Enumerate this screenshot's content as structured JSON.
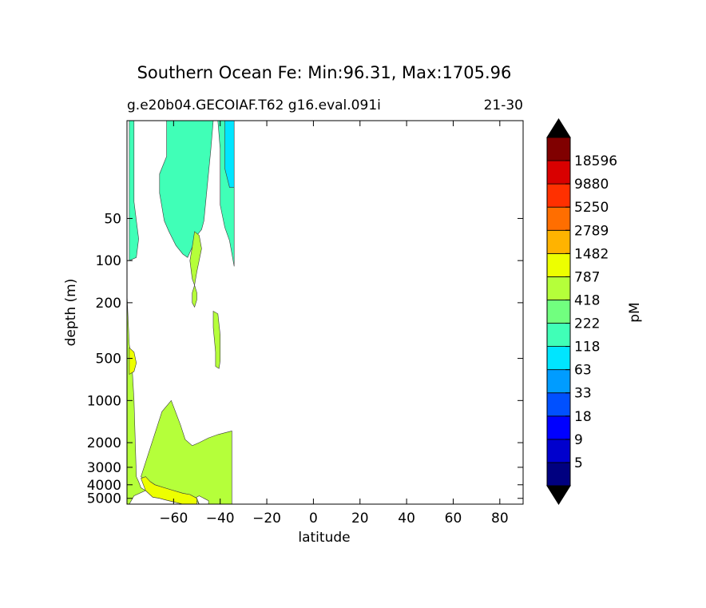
{
  "chart_data": {
    "type": "filled-contour",
    "title": "Southern Ocean Fe: Min:96.31, Max:1705.96",
    "subtitle_left": "g.e20b04.GECOIAF.T62 g16.eval.091i",
    "subtitle_right": "21-30",
    "xlabel": "latitude",
    "ylabel": "depth (m)",
    "xlim": [
      -80,
      90
    ],
    "x_ticks": [
      -60,
      -40,
      -20,
      0,
      20,
      40,
      60,
      80
    ],
    "x_tick_labels": [
      "−60",
      "−40",
      "−20",
      "0",
      "20",
      "40",
      "60",
      "80"
    ],
    "ylim": [
      5500,
      10
    ],
    "y_scale": "log",
    "y_ticks": [
      50,
      100,
      200,
      500,
      1000,
      2000,
      3000,
      4000,
      5000
    ],
    "y_tick_labels": [
      "50",
      "100",
      "200",
      "500",
      "1000",
      "2000",
      "3000",
      "4000",
      "5000"
    ],
    "colorbar": {
      "label": "pM",
      "ticks": [
        "5",
        "9",
        "18",
        "33",
        "63",
        "118",
        "222",
        "418",
        "787",
        "1482",
        "2789",
        "5250",
        "9880",
        "18596"
      ],
      "colors": [
        "#000080",
        "#0000cd",
        "#0000ff",
        "#0050ff",
        "#009cff",
        "#00e5ff",
        "#40ffb7",
        "#71ff7f",
        "#b5ff3a",
        "#edff00",
        "#ffb300",
        "#ff6e00",
        "#ff3000",
        "#d90000",
        "#800000"
      ],
      "extend": "both"
    },
    "regions": [
      {
        "level": "118-222",
        "color": "#40ffb7",
        "polygon": [
          [
            -79,
            10
          ],
          [
            -63,
            10
          ],
          [
            -63,
            18
          ],
          [
            -66,
            24
          ],
          [
            -66,
            33
          ],
          [
            -64,
            52
          ],
          [
            -62,
            62
          ],
          [
            -59,
            78
          ],
          [
            -56,
            90
          ],
          [
            -54,
            95
          ],
          [
            -52,
            80
          ],
          [
            -50,
            66
          ],
          [
            -48,
            60
          ],
          [
            -47,
            52
          ],
          [
            -46,
            35
          ],
          [
            -44,
            16
          ],
          [
            -43,
            10
          ],
          [
            -41,
            10
          ],
          [
            -40,
            16
          ],
          [
            -40,
            40
          ],
          [
            -38,
            58
          ],
          [
            -36,
            72
          ],
          [
            -34,
            110
          ],
          [
            -34,
            10
          ],
          [
            -77,
            10
          ],
          [
            -77,
            38
          ],
          [
            -75,
            70
          ],
          [
            -76,
            95
          ],
          [
            -79,
            100
          ]
        ]
      },
      {
        "level": "63-118",
        "color": "#00e5ff",
        "polygon": [
          [
            -38,
            10
          ],
          [
            -34,
            10
          ],
          [
            -34,
            30
          ],
          [
            -36,
            30
          ],
          [
            -38,
            22
          ]
        ]
      },
      {
        "level": "418-787",
        "color": "#b5ff3a",
        "polygon": [
          [
            -51,
            62
          ],
          [
            -49,
            66
          ],
          [
            -48,
            82
          ],
          [
            -50,
            120
          ],
          [
            -51,
            150
          ],
          [
            -52,
            135
          ],
          [
            -53,
            100
          ],
          [
            -52,
            80
          ]
        ]
      },
      {
        "level": "418-787",
        "color": "#b5ff3a",
        "polygon": [
          [
            -51,
            150
          ],
          [
            -50,
            170
          ],
          [
            -50,
            190
          ],
          [
            -51,
            215
          ],
          [
            -52,
            200
          ],
          [
            -52,
            170
          ]
        ]
      },
      {
        "level": "418-787",
        "color": "#b5ff3a",
        "polygon": [
          [
            -43,
            230
          ],
          [
            -41,
            240
          ],
          [
            -40,
            340
          ],
          [
            -40,
            520
          ],
          [
            -40.5,
            590
          ],
          [
            -42,
            570
          ],
          [
            -42,
            450
          ],
          [
            -43,
            300
          ]
        ]
      },
      {
        "level": "418-787",
        "color": "#b5ff3a",
        "polygon": [
          [
            -80,
            175
          ],
          [
            -79,
            400
          ],
          [
            -78,
            500
          ],
          [
            -77,
            1000
          ],
          [
            -76,
            3500
          ],
          [
            -75,
            3800
          ],
          [
            -74,
            4200
          ],
          [
            -72,
            4400
          ],
          [
            -69,
            4900
          ],
          [
            -66,
            5000
          ],
          [
            -64,
            5100
          ],
          [
            -60,
            5300
          ],
          [
            -56,
            5500
          ],
          [
            -49,
            5500
          ],
          [
            -50,
            5000
          ],
          [
            -53,
            4700
          ],
          [
            -56,
            4600
          ],
          [
            -60,
            4400
          ],
          [
            -64,
            4200
          ],
          [
            -66,
            4100
          ],
          [
            -68,
            4000
          ],
          [
            -70,
            3800
          ],
          [
            -73,
            3600
          ],
          [
            -74,
            3500
          ],
          [
            -65,
            1200
          ],
          [
            -61,
            1000
          ],
          [
            -57,
            1500
          ],
          [
            -55,
            1900
          ],
          [
            -52,
            2100
          ],
          [
            -49,
            2000
          ],
          [
            -45,
            1850
          ],
          [
            -41,
            1750
          ],
          [
            -35,
            1650
          ],
          [
            -35,
            5500
          ],
          [
            -45,
            5500
          ],
          [
            -45,
            5200
          ],
          [
            -47,
            5000
          ],
          [
            -49,
            4800
          ],
          [
            -51,
            5000
          ],
          [
            -49,
            5500
          ],
          [
            -56,
            5500
          ],
          [
            -60,
            4800
          ],
          [
            -63,
            4500
          ],
          [
            -69,
            4800
          ],
          [
            -72,
            4400
          ],
          [
            -77,
            4800
          ],
          [
            -79,
            5500
          ],
          [
            -80,
            5500
          ]
        ]
      },
      {
        "level": "787-1482",
        "color": "#edff00",
        "polygon": [
          [
            -74,
            3600
          ],
          [
            -72,
            3500
          ],
          [
            -70,
            3800
          ],
          [
            -68,
            4000
          ],
          [
            -64,
            4200
          ],
          [
            -60,
            4400
          ],
          [
            -56,
            4600
          ],
          [
            -53,
            4700
          ],
          [
            -50,
            5000
          ],
          [
            -50,
            5500
          ],
          [
            -56,
            5500
          ],
          [
            -60,
            5300
          ],
          [
            -64,
            5100
          ],
          [
            -66,
            5000
          ],
          [
            -69,
            4900
          ],
          [
            -72,
            4400
          ]
        ]
      },
      {
        "level": "787-1482",
        "color": "#edff00",
        "polygon": [
          [
            -79,
            420
          ],
          [
            -77,
            450
          ],
          [
            -76,
            540
          ],
          [
            -77,
            620
          ],
          [
            -79,
            650
          ]
        ]
      }
    ]
  }
}
